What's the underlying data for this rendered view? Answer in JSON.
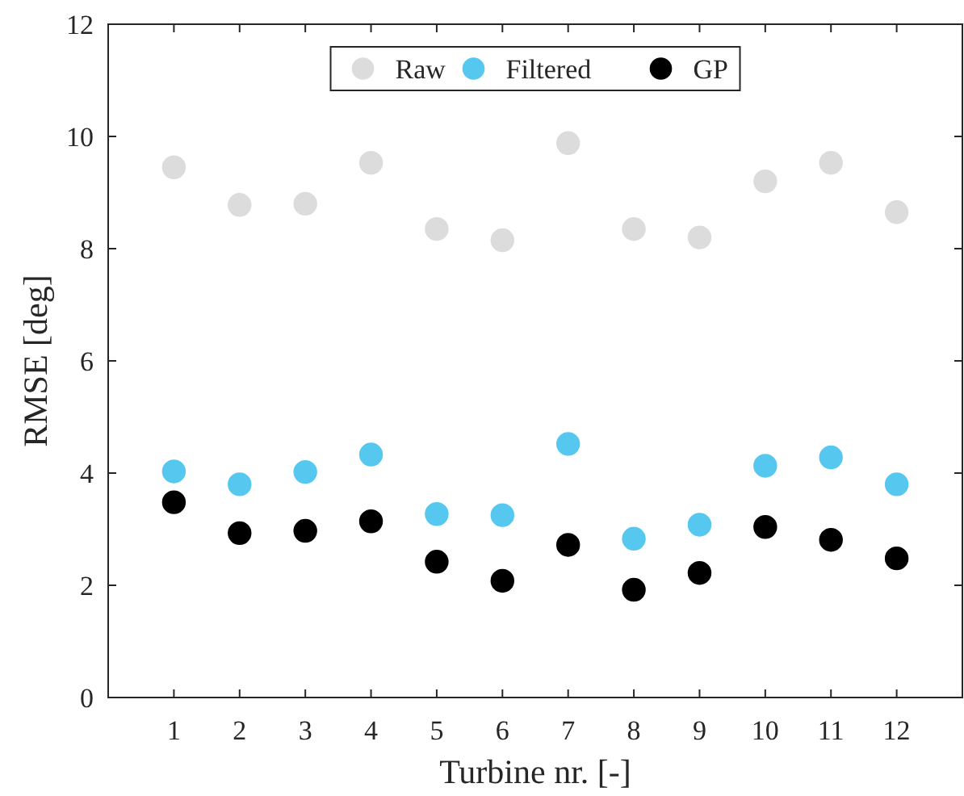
{
  "chart_data": {
    "type": "scatter",
    "xlabel": "Turbine nr. [-]",
    "ylabel": "RMSE [deg]",
    "x": [
      1,
      2,
      3,
      4,
      5,
      6,
      7,
      8,
      9,
      10,
      11,
      12
    ],
    "xlim": [
      0,
      13
    ],
    "xticks": [
      1,
      2,
      3,
      4,
      5,
      6,
      7,
      8,
      9,
      10,
      11,
      12
    ],
    "ylim": [
      0,
      12
    ],
    "yticks": [
      0,
      2,
      4,
      6,
      8,
      10,
      12
    ],
    "marker": "circle",
    "legend": "top",
    "series": [
      {
        "name": "Raw",
        "color": "#dcdcdc",
        "values": [
          9.45,
          8.78,
          8.8,
          9.53,
          8.35,
          8.15,
          9.88,
          8.35,
          8.2,
          9.2,
          9.53,
          8.65
        ]
      },
      {
        "name": "Filtered",
        "color": "#56c8f0",
        "values": [
          4.03,
          3.8,
          4.02,
          4.33,
          3.27,
          3.25,
          4.52,
          2.83,
          3.08,
          4.13,
          4.28,
          3.8
        ]
      },
      {
        "name": "GP",
        "color": "#000000",
        "values": [
          3.48,
          2.93,
          2.97,
          3.14,
          2.42,
          2.08,
          2.72,
          1.92,
          2.22,
          3.04,
          2.81,
          2.48
        ]
      }
    ]
  }
}
